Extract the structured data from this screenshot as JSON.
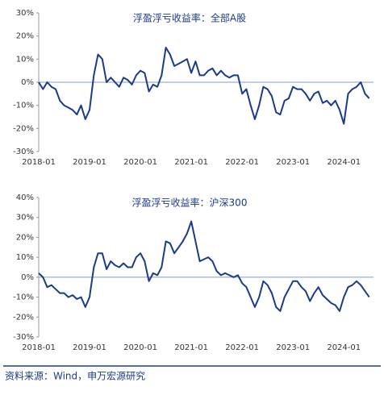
{
  "chart_data": [
    {
      "type": "line",
      "title": "浮盈浮亏收益率：全部A股",
      "x": [
        "2018-01",
        "2018-02",
        "2018-03",
        "2018-04",
        "2018-05",
        "2018-06",
        "2018-07",
        "2018-08",
        "2018-09",
        "2018-10",
        "2018-11",
        "2018-12",
        "2019-01",
        "2019-02",
        "2019-03",
        "2019-04",
        "2019-05",
        "2019-06",
        "2019-07",
        "2019-08",
        "2019-09",
        "2019-10",
        "2019-11",
        "2019-12",
        "2020-01",
        "2020-02",
        "2020-03",
        "2020-04",
        "2020-05",
        "2020-06",
        "2020-07",
        "2020-08",
        "2020-09",
        "2020-10",
        "2020-11",
        "2020-12",
        "2021-01",
        "2021-02",
        "2021-03",
        "2021-04",
        "2021-05",
        "2021-06",
        "2021-07",
        "2021-08",
        "2021-09",
        "2021-10",
        "2021-11",
        "2021-12",
        "2022-01",
        "2022-02",
        "2022-03",
        "2022-04",
        "2022-05",
        "2022-06",
        "2022-07",
        "2022-08",
        "2022-09",
        "2022-10",
        "2022-11",
        "2022-12",
        "2023-01",
        "2023-02",
        "2023-03",
        "2023-04",
        "2023-05",
        "2023-06",
        "2023-07",
        "2023-08",
        "2023-09",
        "2023-10",
        "2023-11",
        "2023-12",
        "2024-01",
        "2024-02",
        "2024-03",
        "2024-04",
        "2024-05",
        "2024-06",
        "2024-07"
      ],
      "series": [
        {
          "color": "#1b3a8a",
          "values": [
            0,
            -3,
            0,
            -2,
            -3,
            -8,
            -10,
            -11,
            -12,
            -14,
            -10,
            -16,
            -12,
            3,
            12,
            10,
            0,
            2,
            0,
            -2,
            2,
            1,
            -1,
            3,
            5,
            4,
            -4,
            -1,
            -2,
            3,
            15,
            12,
            7,
            8,
            9,
            10,
            4,
            9,
            3,
            3,
            5,
            6,
            3,
            5,
            3,
            2,
            3,
            3,
            -5,
            -3,
            -10,
            -16,
            -10,
            -2,
            -3,
            -6,
            -13,
            -14,
            -8,
            -7,
            -2,
            -3,
            -3,
            -5,
            -8,
            -5,
            -4,
            -9,
            -8,
            -10,
            -8,
            -12,
            -18,
            -5,
            -3,
            -2,
            0,
            -5,
            -7
          ]
        }
      ],
      "xlim": [
        "2018-01",
        "2024-08"
      ],
      "xticks": [
        "2018-01",
        "2019-01",
        "2020-01",
        "2021-01",
        "2022-01",
        "2023-01",
        "2024-01"
      ],
      "ylim": [
        -30,
        30
      ],
      "yticks": [
        {
          "value": -30,
          "label": "-30%"
        },
        {
          "value": -20,
          "label": "-20%"
        },
        {
          "value": -10,
          "label": "-10%"
        },
        {
          "value": 0,
          "label": "0%"
        },
        {
          "value": 10,
          "label": "10%"
        },
        {
          "value": 20,
          "label": "20%"
        },
        {
          "value": 30,
          "label": "30%"
        }
      ]
    },
    {
      "type": "line",
      "title": "浮盈浮亏收益率：沪深300",
      "x": [
        "2018-01",
        "2018-02",
        "2018-03",
        "2018-04",
        "2018-05",
        "2018-06",
        "2018-07",
        "2018-08",
        "2018-09",
        "2018-10",
        "2018-11",
        "2018-12",
        "2019-01",
        "2019-02",
        "2019-03",
        "2019-04",
        "2019-05",
        "2019-06",
        "2019-07",
        "2019-08",
        "2019-09",
        "2019-10",
        "2019-11",
        "2019-12",
        "2020-01",
        "2020-02",
        "2020-03",
        "2020-04",
        "2020-05",
        "2020-06",
        "2020-07",
        "2020-08",
        "2020-09",
        "2020-10",
        "2020-11",
        "2020-12",
        "2021-01",
        "2021-02",
        "2021-03",
        "2021-04",
        "2021-05",
        "2021-06",
        "2021-07",
        "2021-08",
        "2021-09",
        "2021-10",
        "2021-11",
        "2021-12",
        "2022-01",
        "2022-02",
        "2022-03",
        "2022-04",
        "2022-05",
        "2022-06",
        "2022-07",
        "2022-08",
        "2022-09",
        "2022-10",
        "2022-11",
        "2022-12",
        "2023-01",
        "2023-02",
        "2023-03",
        "2023-04",
        "2023-05",
        "2023-06",
        "2023-07",
        "2023-08",
        "2023-09",
        "2023-10",
        "2023-11",
        "2023-12",
        "2024-01",
        "2024-02",
        "2024-03",
        "2024-04",
        "2024-05",
        "2024-06",
        "2024-07"
      ],
      "series": [
        {
          "color": "#1b3a8a",
          "values": [
            2,
            0,
            -5,
            -4,
            -6,
            -8,
            -8,
            -10,
            -9,
            -11,
            -10,
            -15,
            -10,
            5,
            12,
            12,
            4,
            8,
            6,
            5,
            7,
            5,
            5,
            10,
            12,
            8,
            -2,
            2,
            1,
            5,
            18,
            17,
            12,
            15,
            18,
            22,
            28,
            18,
            8,
            9,
            10,
            8,
            3,
            1,
            2,
            1,
            0,
            1,
            -3,
            -5,
            -10,
            -15,
            -10,
            -2,
            -4,
            -8,
            -15,
            -17,
            -10,
            -6,
            -2,
            -2,
            -5,
            -7,
            -12,
            -8,
            -5,
            -9,
            -11,
            -13,
            -14,
            -17,
            -10,
            -5,
            -4,
            -2,
            -4,
            -7,
            -10
          ]
        }
      ],
      "xlim": [
        "2018-01",
        "2024-08"
      ],
      "xticks": [
        "2018-01",
        "2019-01",
        "2020-01",
        "2021-01",
        "2022-01",
        "2023-01",
        "2024-01"
      ],
      "ylim": [
        -30,
        40
      ],
      "yticks": [
        {
          "value": -30,
          "label": "-30%"
        },
        {
          "value": -20,
          "label": "-20%"
        },
        {
          "value": -10,
          "label": "-10%"
        },
        {
          "value": 0,
          "label": "0%"
        },
        {
          "value": 10,
          "label": "10%"
        },
        {
          "value": 20,
          "label": "20%"
        },
        {
          "value": 30,
          "label": "30%"
        },
        {
          "value": 40,
          "label": "40%"
        }
      ]
    }
  ],
  "source": "资料来源：Wind，申万宏源研究"
}
